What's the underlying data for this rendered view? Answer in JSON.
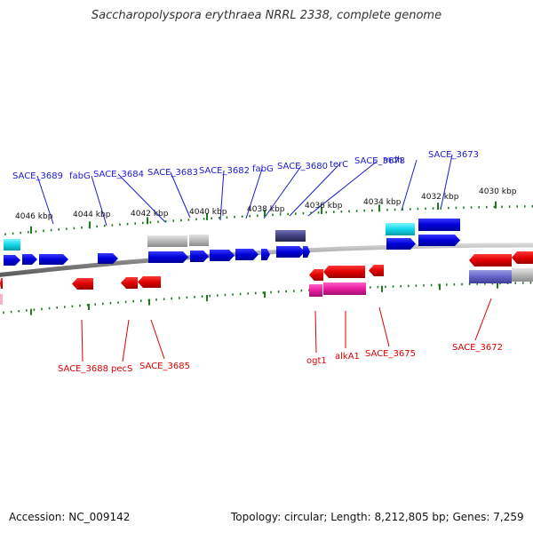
{
  "title": "Saccharopolyspora erythraea NRRL 2338, complete genome",
  "footer": {
    "accession": "Accession: NC_009142",
    "summary": "Topology: circular; Length: 8,212,805 bp; Genes: 7,259"
  },
  "colors": {
    "forward_gene": "#0000e0",
    "reverse_gene": "#e00000",
    "top_label": "#1a1ad0",
    "bottom_label": "#dd0000",
    "tick": "#1e7a1e",
    "backbone": "#8a8a8a"
  },
  "scale_labels": [
    "4046 kbp",
    "4044 kbp",
    "4042 kbp",
    "4040 kbp",
    "4038 kbp",
    "4036 kbp",
    "4034 kbp",
    "4032 kbp",
    "4030 kbp"
  ],
  "top_gene_labels": [
    "SACE_3689",
    "fabG",
    "SACE_3684",
    "SACE_3683",
    "SACE_3682",
    "fabG",
    "SACE_3680",
    "terC",
    "SACE_3678",
    "mdh",
    "SACE_3673"
  ],
  "bottom_gene_labels": [
    "SACE_3688",
    "pecS",
    "SACE_3685",
    "ogt1",
    "alkA1",
    "SACE_3675",
    "SACE_3672"
  ]
}
